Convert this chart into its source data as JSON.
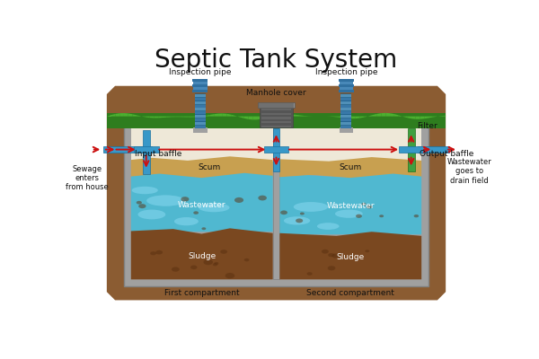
{
  "title": "Septic Tank System",
  "title_fontsize": 20,
  "colors": {
    "background": "#ffffff",
    "soil_brown": "#8B5C32",
    "soil_dark": "#6B3E1E",
    "tank_wall": "#A0A0A0",
    "tank_wall_dark": "#808080",
    "tank_wall_light": "#C0C0C0",
    "grass_green": "#2E7D1E",
    "grass_light": "#4CAF30",
    "scum_tan": "#C8A050",
    "wastewater_blue": "#50B8D0",
    "wastewater_light": "#88D8F0",
    "sludge_brown": "#7A4820",
    "sludge_dark": "#5A3010",
    "pipe_blue": "#3898C8",
    "pipe_dark": "#1870A0",
    "filter_green": "#40A040",
    "filter_dark": "#207020",
    "arrow_red": "#CC1010",
    "manhole_gray": "#555555",
    "manhole_mid": "#707070",
    "manhole_light": "#909090",
    "text_dark": "#111111",
    "white_area": "#EEE8D8",
    "insp_blue": "#3878A8",
    "insp_dark": "#1858808"
  },
  "labels": {
    "input_baffle": "Input baffle",
    "output_baffle": "Output baffle",
    "filter": "Filter",
    "scum1": "Scum",
    "scum2": "Scum",
    "wastewater1": "Wastewater",
    "wastewater2": "Wastewater",
    "sludge1": "Sludge",
    "sludge2": "Sludge",
    "compartment1": "First compartment",
    "compartment2": "Second compartment",
    "sewage_in": "Sewage\nenters\nfrom house",
    "wastewater_out": "Wastewater\ngoes to\ndrain field",
    "inspection1": "Inspection pipe",
    "inspection2": "Inspection pipe",
    "manhole": "Manhole cover"
  }
}
